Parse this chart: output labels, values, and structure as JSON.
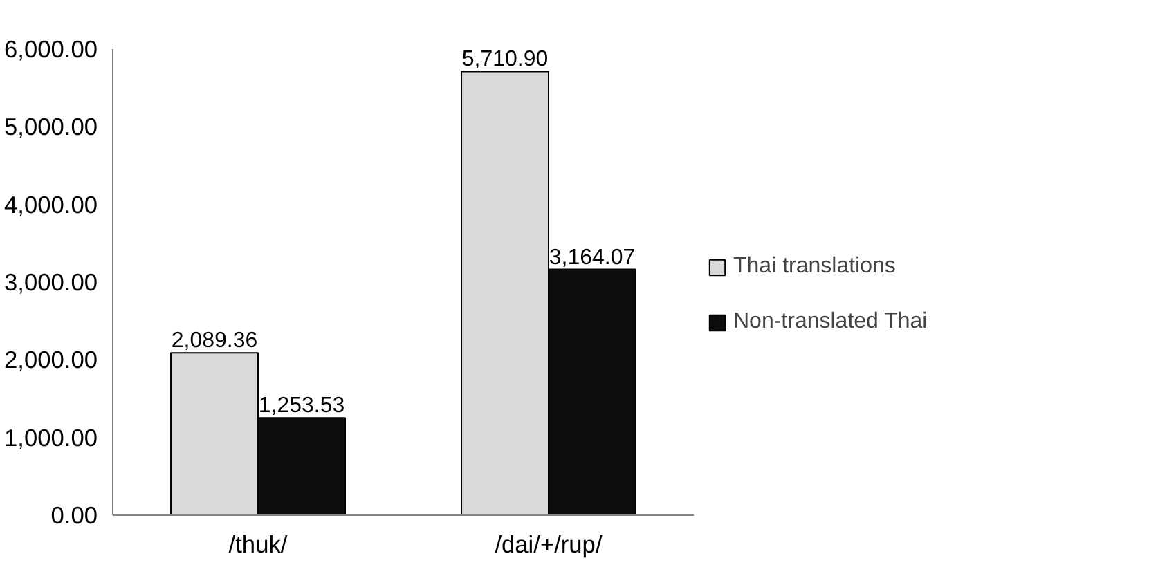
{
  "chart_data": {
    "type": "bar",
    "categories": [
      "/thuk/",
      "/dai/+/rup/"
    ],
    "series": [
      {
        "name": "Thai translations",
        "color": "#d9d9d9",
        "values": [
          2089.36,
          5710.9
        ]
      },
      {
        "name": "Non-translated Thai",
        "color": "#0d0d0d",
        "values": [
          1253.53,
          3164.07
        ]
      }
    ],
    "ylim": [
      0,
      6000
    ],
    "yticks": [
      {
        "value": 0,
        "label": "0.00"
      },
      {
        "value": 1000,
        "label": "1,000.00"
      },
      {
        "value": 2000,
        "label": "2,000.00"
      },
      {
        "value": 3000,
        "label": "3,000.00"
      },
      {
        "value": 4000,
        "label": "4,000.00"
      },
      {
        "value": 5000,
        "label": "5,000.00"
      },
      {
        "value": 6000,
        "label": "6,000.00"
      }
    ],
    "value_labels": [
      [
        "2,089.36",
        "5,710.90"
      ],
      [
        "1,253.53",
        "3,164.07"
      ]
    ],
    "grid": false,
    "legend": "right"
  }
}
